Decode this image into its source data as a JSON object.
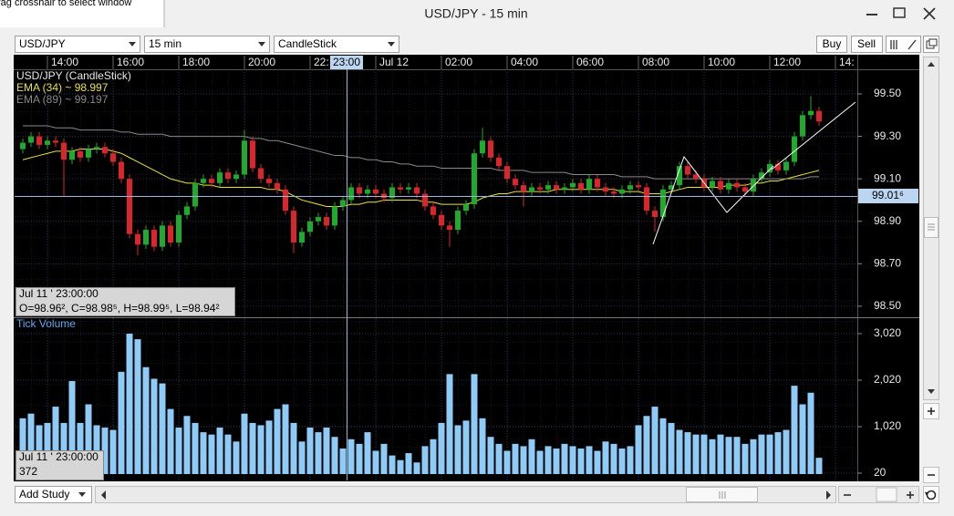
{
  "window": {
    "hint": "rag crosshair to select window",
    "title": "USD/JPY - 15 min"
  },
  "toolbar": {
    "symbol": "USD/JPY",
    "interval": "15 min",
    "chart_type": "CandleStick",
    "buy": "Buy",
    "sell": "Sell"
  },
  "footer": {
    "add_study": "Add Study"
  },
  "chart_data": [
    {
      "type": "candlestick",
      "title": "USD/JPY (CandleStick)",
      "categories": [
        null,
        null,
        null,
        "14:00",
        null,
        null,
        null,
        null,
        null,
        null,
        null,
        "16:00",
        null,
        null,
        null,
        null,
        null,
        null,
        null,
        "18:00",
        null,
        null,
        null,
        null,
        null,
        null,
        null,
        "20:00",
        null,
        null,
        null,
        null,
        null,
        null,
        null,
        "22:",
        null,
        null,
        null,
        null,
        null,
        null,
        null,
        "Jul 12",
        null,
        null,
        null,
        null,
        null,
        null,
        null,
        "02:00",
        null,
        null,
        null,
        null,
        null,
        null,
        null,
        "04:00",
        null,
        null,
        null,
        null,
        null,
        null,
        null,
        "06:00",
        null,
        null,
        null,
        null,
        null,
        null,
        null,
        "08:00",
        null,
        null,
        null,
        null,
        null,
        null,
        null,
        "10:00",
        null,
        null,
        null,
        null,
        null,
        null,
        null,
        "12:00",
        null,
        null,
        null,
        null,
        null,
        null,
        null,
        "14:"
      ],
      "open": [
        99.24,
        99.27,
        99.3,
        99.26,
        99.28,
        99.27,
        99.19,
        99.23,
        99.2,
        99.24,
        99.25,
        99.22,
        99.18,
        99.1,
        98.84,
        98.79,
        98.86,
        98.78,
        98.88,
        98.8,
        98.93,
        98.97,
        99.08,
        99.1,
        99.08,
        99.13,
        99.1,
        99.12,
        99.28,
        99.15,
        99.1,
        99.08,
        99.05,
        98.95,
        98.8,
        98.85,
        98.9,
        98.92,
        98.88,
        98.97,
        99.0,
        99.06,
        99.03,
        99.05,
        99.03,
        99.01,
        99.06,
        99.05,
        99.06,
        99.03,
        98.97,
        98.93,
        98.88,
        98.86,
        98.95,
        98.98,
        99.22,
        99.28,
        99.2,
        99.16,
        99.1,
        99.07,
        99.04,
        99.06,
        99.05,
        99.07,
        99.05,
        99.06,
        99.08,
        99.05,
        99.1,
        99.06,
        99.04,
        99.03,
        99.05,
        99.07,
        99.06,
        98.95,
        98.92,
        99.05,
        99.07,
        99.16,
        99.12,
        99.1,
        99.06,
        99.09,
        99.05,
        99.08,
        99.06,
        99.04,
        99.1,
        99.13,
        99.17,
        99.14,
        99.18,
        99.3,
        99.4,
        99.42,
        null,
        null
      ],
      "high": [
        99.29,
        99.32,
        99.32,
        99.3,
        99.3,
        99.29,
        99.25,
        99.25,
        99.26,
        99.27,
        99.27,
        99.24,
        99.2,
        99.12,
        98.86,
        98.88,
        98.88,
        98.9,
        98.9,
        98.95,
        98.99,
        99.1,
        99.12,
        99.12,
        99.15,
        99.15,
        99.14,
        99.33,
        99.3,
        99.17,
        99.12,
        99.1,
        99.07,
        98.97,
        98.87,
        98.92,
        98.94,
        98.94,
        98.99,
        99.02,
        99.08,
        99.08,
        99.07,
        99.07,
        99.05,
        99.08,
        99.08,
        99.08,
        99.08,
        99.05,
        98.99,
        98.95,
        98.9,
        98.97,
        99.0,
        99.24,
        99.34,
        99.3,
        99.22,
        99.18,
        99.12,
        99.09,
        99.08,
        99.08,
        99.09,
        99.09,
        99.08,
        99.1,
        99.1,
        99.12,
        99.12,
        99.08,
        99.06,
        99.07,
        99.09,
        99.09,
        99.08,
        98.97,
        99.07,
        99.09,
        99.18,
        99.18,
        99.14,
        99.12,
        99.11,
        99.11,
        99.1,
        99.1,
        99.08,
        99.12,
        99.15,
        99.19,
        99.19,
        99.2,
        99.32,
        99.42,
        99.49,
        99.44,
        null,
        null
      ],
      "low": [
        99.22,
        99.25,
        99.24,
        99.24,
        99.25,
        99.02,
        99.17,
        99.18,
        99.18,
        99.22,
        99.2,
        99.16,
        99.08,
        98.82,
        98.74,
        98.77,
        98.76,
        98.76,
        98.78,
        98.78,
        98.91,
        98.95,
        99.06,
        99.06,
        99.06,
        99.08,
        99.08,
        99.1,
        99.13,
        99.08,
        99.06,
        99.03,
        98.93,
        98.75,
        98.78,
        98.83,
        98.88,
        98.86,
        98.86,
        98.95,
        98.98,
        99.01,
        99.01,
        99.01,
        98.99,
        98.99,
        99.03,
        99.03,
        99.01,
        98.95,
        98.91,
        98.86,
        98.78,
        98.84,
        98.93,
        98.96,
        99.2,
        99.18,
        99.14,
        99.08,
        99.05,
        98.97,
        99.02,
        99.03,
        99.03,
        99.03,
        99.03,
        99.04,
        99.03,
        99.03,
        99.04,
        99.02,
        99.01,
        99.01,
        99.03,
        99.04,
        98.93,
        98.85,
        98.9,
        99.03,
        99.05,
        99.1,
        99.08,
        99.04,
        99.04,
        99.03,
        99.03,
        99.04,
        99.02,
        99.02,
        99.08,
        99.11,
        99.12,
        99.12,
        99.16,
        99.28,
        99.38,
        99.35,
        null,
        null
      ],
      "close": [
        99.27,
        99.3,
        99.26,
        99.28,
        99.27,
        99.19,
        99.23,
        99.2,
        99.24,
        99.25,
        99.22,
        99.18,
        99.1,
        98.84,
        98.79,
        98.86,
        98.78,
        98.88,
        98.8,
        98.93,
        98.97,
        99.08,
        99.1,
        99.08,
        99.13,
        99.1,
        99.12,
        99.28,
        99.15,
        99.1,
        99.08,
        99.05,
        98.95,
        98.8,
        98.85,
        98.9,
        98.92,
        98.88,
        98.97,
        99.0,
        99.06,
        99.03,
        99.05,
        99.03,
        99.01,
        99.06,
        99.05,
        99.06,
        99.03,
        98.97,
        98.93,
        98.88,
        98.86,
        98.95,
        98.98,
        99.22,
        99.28,
        99.2,
        99.16,
        99.1,
        99.07,
        99.04,
        99.06,
        99.05,
        99.07,
        99.05,
        99.06,
        99.08,
        99.05,
        99.1,
        99.06,
        99.04,
        99.03,
        99.05,
        99.07,
        99.06,
        98.95,
        98.92,
        99.05,
        99.07,
        99.16,
        99.12,
        99.1,
        99.06,
        99.09,
        99.05,
        99.08,
        99.06,
        99.04,
        99.1,
        99.13,
        99.17,
        99.14,
        99.18,
        99.3,
        99.4,
        99.42,
        99.37,
        null,
        null
      ],
      "up_color": "#1faa2b",
      "down_color": "#d8262c",
      "series": [
        {
          "name": "EMA (34) ~ 98.997",
          "color": "#e8e23a",
          "values": [
            99.19,
            99.2,
            99.21,
            99.22,
            99.23,
            99.23,
            99.23,
            99.24,
            99.24,
            99.24,
            99.24,
            99.23,
            99.22,
            99.2,
            99.18,
            99.16,
            99.14,
            99.12,
            99.1,
            99.09,
            99.08,
            99.08,
            99.07,
            99.07,
            99.06,
            99.06,
            99.06,
            99.06,
            99.06,
            99.06,
            99.05,
            99.05,
            99.04,
            99.02,
            99.0,
            98.99,
            98.98,
            98.97,
            98.97,
            98.97,
            98.98,
            98.98,
            98.99,
            98.99,
            99.0,
            99.0,
            99.0,
            99.0,
            99.0,
            98.99,
            98.99,
            98.98,
            98.98,
            98.98,
            98.98,
            98.99,
            99.01,
            99.02,
            99.03,
            99.03,
            99.04,
            99.04,
            99.04,
            99.04,
            99.04,
            99.05,
            99.05,
            99.05,
            99.05,
            99.05,
            99.05,
            99.05,
            99.05,
            99.04,
            99.04,
            99.04,
            99.03,
            99.03,
            99.03,
            99.04,
            99.05,
            99.06,
            99.06,
            99.06,
            99.06,
            99.06,
            99.07,
            99.07,
            99.07,
            99.08,
            99.08,
            99.09,
            99.09,
            99.1,
            99.11,
            99.12,
            99.13,
            99.14,
            null,
            null
          ]
        },
        {
          "name": "EMA (89) ~ 99.197",
          "color": "#8a8a8a",
          "values": [
            99.35,
            99.35,
            99.35,
            99.35,
            99.34,
            99.34,
            99.34,
            99.33,
            99.33,
            99.33,
            99.33,
            99.33,
            99.32,
            99.32,
            99.31,
            99.31,
            99.31,
            99.31,
            99.3,
            99.3,
            99.3,
            99.3,
            99.3,
            99.3,
            99.3,
            99.3,
            99.3,
            99.3,
            99.29,
            99.29,
            99.28,
            99.28,
            99.27,
            99.26,
            99.25,
            99.24,
            99.23,
            99.22,
            99.21,
            99.21,
            99.2,
            99.2,
            99.19,
            99.19,
            99.18,
            99.18,
            99.17,
            99.17,
            99.16,
            99.16,
            99.16,
            99.15,
            99.15,
            99.15,
            99.15,
            99.15,
            99.15,
            99.15,
            99.14,
            99.14,
            99.14,
            99.14,
            99.13,
            99.13,
            99.13,
            99.13,
            99.13,
            99.12,
            99.12,
            99.12,
            99.12,
            99.12,
            99.12,
            99.11,
            99.11,
            99.11,
            99.11,
            99.1,
            99.1,
            99.1,
            99.1,
            99.1,
            99.1,
            99.1,
            99.1,
            99.1,
            99.1,
            99.1,
            99.1,
            99.1,
            99.1,
            99.1,
            99.1,
            99.1,
            99.1,
            99.1,
            99.11,
            99.11,
            null,
            null
          ]
        }
      ],
      "ylim": [
        98.448,
        99.616
      ],
      "yticks": [
        {
          "value": 98.5,
          "label": "98.50"
        },
        {
          "value": 98.7,
          "label": "98.70"
        },
        {
          "value": 98.9,
          "label": "98.90"
        },
        {
          "value": 99.1,
          "label": "99.10"
        },
        {
          "value": 99.3,
          "label": "99.30"
        },
        {
          "value": 99.5,
          "label": "99.50"
        }
      ],
      "grid": true,
      "crosshair": {
        "time": "23:00",
        "price": "99.01⁶"
      },
      "tooltip": {
        "time": "Jul 11 ' 23:00:00",
        "ohlc": "O=98.96², C=98.98⁵, H=98.99⁵, L=98.94²"
      }
    },
    {
      "type": "bar",
      "title": "Tick Volume",
      "color": "#8ecbf6",
      "values": [
        1200,
        1300,
        1050,
        1100,
        1450,
        1100,
        2000,
        1100,
        1500,
        1050,
        1000,
        950,
        2200,
        3020,
        2900,
        2300,
        2050,
        1950,
        1400,
        1000,
        1250,
        1100,
        900,
        850,
        1000,
        850,
        700,
        1300,
        1100,
        1050,
        1150,
        1400,
        1500,
        1100,
        700,
        1000,
        900,
        1000,
        800,
        550,
        750,
        650,
        900,
        500,
        650,
        400,
        300,
        450,
        250,
        600,
        750,
        1100,
        2150,
        1050,
        1150,
        2150,
        1200,
        800,
        650,
        500,
        650,
        600,
        750,
        500,
        600,
        550,
        650,
        600,
        550,
        600,
        500,
        700,
        650,
        550,
        600,
        1050,
        1250,
        1450,
        1200,
        1100,
        950,
        900,
        850,
        850,
        750,
        850,
        800,
        800,
        650,
        750,
        850,
        850,
        900,
        950,
        1900,
        1500,
        1750,
        350
      ],
      "ylim": [
        -137,
        3353
      ],
      "yticks": [
        {
          "value": 20,
          "label": "20"
        },
        {
          "value": 1020,
          "label": "1,020"
        },
        {
          "value": 2020,
          "label": "2,020"
        },
        {
          "value": 3020,
          "label": "3,020"
        }
      ],
      "grid": true,
      "tooltip": {
        "time": "Jul 11 ' 23:00:00",
        "value": 372
      }
    }
  ]
}
